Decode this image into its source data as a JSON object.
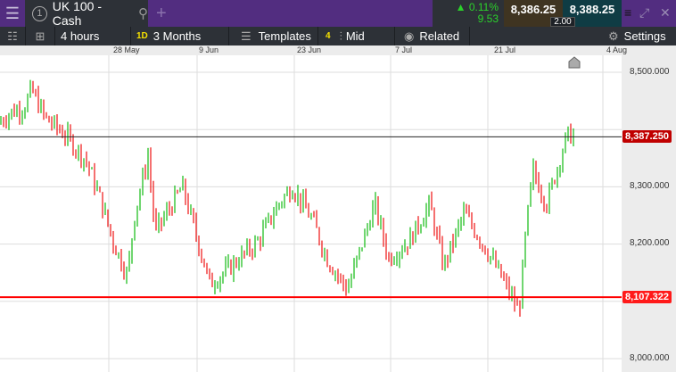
{
  "header": {
    "tab_number": "1",
    "instrument": "UK 100 - Cash",
    "change_pct": "0.11%",
    "change_abs": "9.53",
    "sell": "8,386.25",
    "buy": "8,388.25",
    "spread": "2.00"
  },
  "toolbar": {
    "interval": "4 hours",
    "range_badge": "1D",
    "range": "3 Months",
    "templates": "Templates",
    "count_badge": "4",
    "price_type": "Mid",
    "related": "Related",
    "settings": "Settings"
  },
  "colors": {
    "up": "#11bb11",
    "down": "#ee1111",
    "brand": "#522d80",
    "current_price": "#c00000",
    "level_line": "#ff0000"
  },
  "chart_data": {
    "type": "ohlc",
    "x_ticks": [
      "28 May",
      "9 Jun",
      "23 Jun",
      "7 Jul",
      "21 Jul",
      "4 Aug"
    ],
    "y_ticks": [
      "8,500.000",
      "8,300.000",
      "8,200.000",
      "8,000.000"
    ],
    "ylim": [
      7985,
      8550
    ],
    "current_price": 8387.25,
    "current_price_label": "8,387.250",
    "level": 8107.322,
    "level_label": "8,107.322",
    "close_path": [
      [
        "05-09",
        8410
      ],
      [
        "05-11",
        8430
      ],
      [
        "05-13",
        8440
      ],
      [
        "05-14",
        8470
      ],
      [
        "05-16",
        8420
      ],
      [
        "05-19",
        8390
      ],
      [
        "05-22",
        8345
      ],
      [
        "05-24",
        8280
      ],
      [
        "05-26",
        8200
      ],
      [
        "05-28",
        8145
      ],
      [
        "05-29",
        8250
      ],
      [
        "05-31",
        8355
      ],
      [
        "06-01",
        8220
      ],
      [
        "06-05",
        8300
      ],
      [
        "06-09",
        8130
      ],
      [
        "06-12",
        8160
      ],
      [
        "06-16",
        8205
      ],
      [
        "06-19",
        8270
      ],
      [
        "06-21",
        8300
      ],
      [
        "06-24",
        8240
      ],
      [
        "06-26",
        8175
      ],
      [
        "06-29",
        8120
      ],
      [
        "07-03",
        8270
      ],
      [
        "07-05",
        8175
      ],
      [
        "07-08",
        8205
      ],
      [
        "07-11",
        8270
      ],
      [
        "07-13",
        8160
      ],
      [
        "07-16",
        8255
      ],
      [
        "07-20",
        8175
      ],
      [
        "07-22",
        8130
      ],
      [
        "07-24",
        8080
      ],
      [
        "07-25",
        8220
      ],
      [
        "07-26",
        8330
      ],
      [
        "07-28",
        8270
      ],
      [
        "07-31",
        8390
      ]
    ]
  }
}
